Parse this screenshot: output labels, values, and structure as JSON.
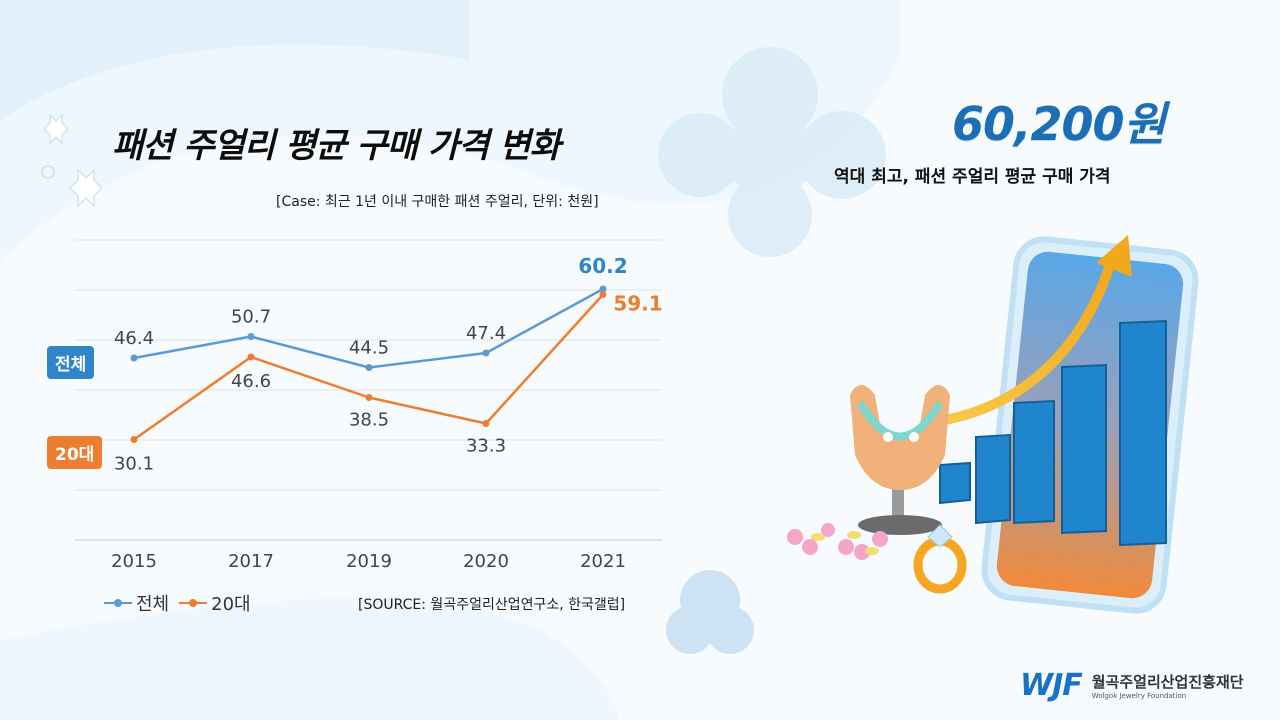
{
  "headline": {
    "value": "60,200원",
    "caption": "역대 최고, 패션 주얼리 평균 구매 가격"
  },
  "logo": {
    "mark": "WJF",
    "name_ko": "월곡주얼리산업진흥재단",
    "name_en": "Wolgok Jewelry Foundation"
  },
  "colors": {
    "total": "#5b9bd5",
    "age20s": "#ed7d31",
    "accent": "#1c6fb5"
  },
  "chart_data": {
    "type": "line",
    "title": "패션 주얼리 평균 구매 가격 변화",
    "subtitle": "[Case: 최근 1년 이내 구매한 패션 주얼리, 단위: 천원]",
    "source": "[SOURCE: 월곡주얼리산업연구소, 한국갤럽]",
    "categories": [
      "2015",
      "2017",
      "2019",
      "2020",
      "2021"
    ],
    "series": [
      {
        "name": "전체",
        "values": [
          46.4,
          50.7,
          44.5,
          47.4,
          60.2
        ],
        "color": "#5b9bd5"
      },
      {
        "name": "20대",
        "values": [
          30.1,
          46.6,
          38.5,
          33.3,
          59.1
        ],
        "color": "#ed7d31"
      }
    ],
    "ylim": [
      10,
      70
    ],
    "grid": true,
    "legend": "bottom-left"
  }
}
